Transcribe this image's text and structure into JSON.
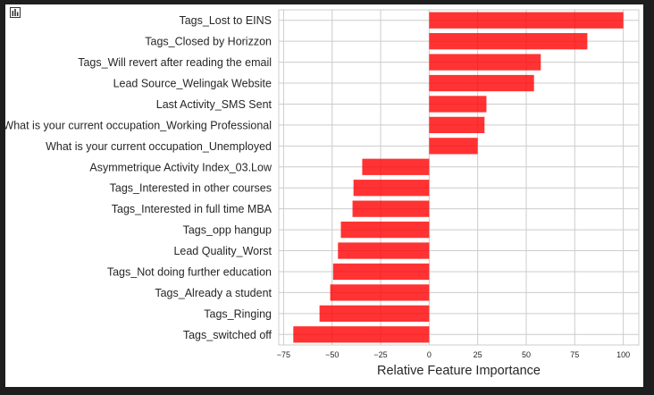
{
  "toolbar": {
    "icon": "bar-chart-icon"
  },
  "chart_data": {
    "type": "bar",
    "orientation": "horizontal",
    "categories": [
      "Tags_Lost to EINS",
      "Tags_Closed by Horizzon",
      "Tags_Will revert after reading the email",
      "Lead Source_Welingak Website",
      "Last Activity_SMS Sent",
      "What is your current occupation_Working Professional",
      "What is your current occupation_Unemployed",
      "Asymmetrique Activity Index_03.Low",
      "Tags_Interested in other courses",
      "Tags_Interested  in full time MBA",
      "Tags_opp hangup",
      "Lead Quality_Worst",
      "Tags_Not doing further education",
      "Tags_Already a student",
      "Tags_Ringing",
      "Tags_switched off"
    ],
    "values": [
      100,
      81.5,
      57.5,
      54,
      29.5,
      28.5,
      25,
      -34.5,
      -39,
      -39.5,
      -45.5,
      -47,
      -49.5,
      -51,
      -56.5,
      -70
    ],
    "xlabel": "Relative Feature Importance",
    "ylabel": "",
    "xlim": [
      -77.5,
      108
    ],
    "xticks": [
      "−75",
      "−50",
      "−25",
      "0",
      "25",
      "50",
      "75",
      "100"
    ],
    "xtick_values": [
      -75,
      -50,
      -25,
      0,
      25,
      50,
      75,
      100
    ],
    "grid": true,
    "bar_color": "#ff0000",
    "bar_alpha": 0.8
  }
}
